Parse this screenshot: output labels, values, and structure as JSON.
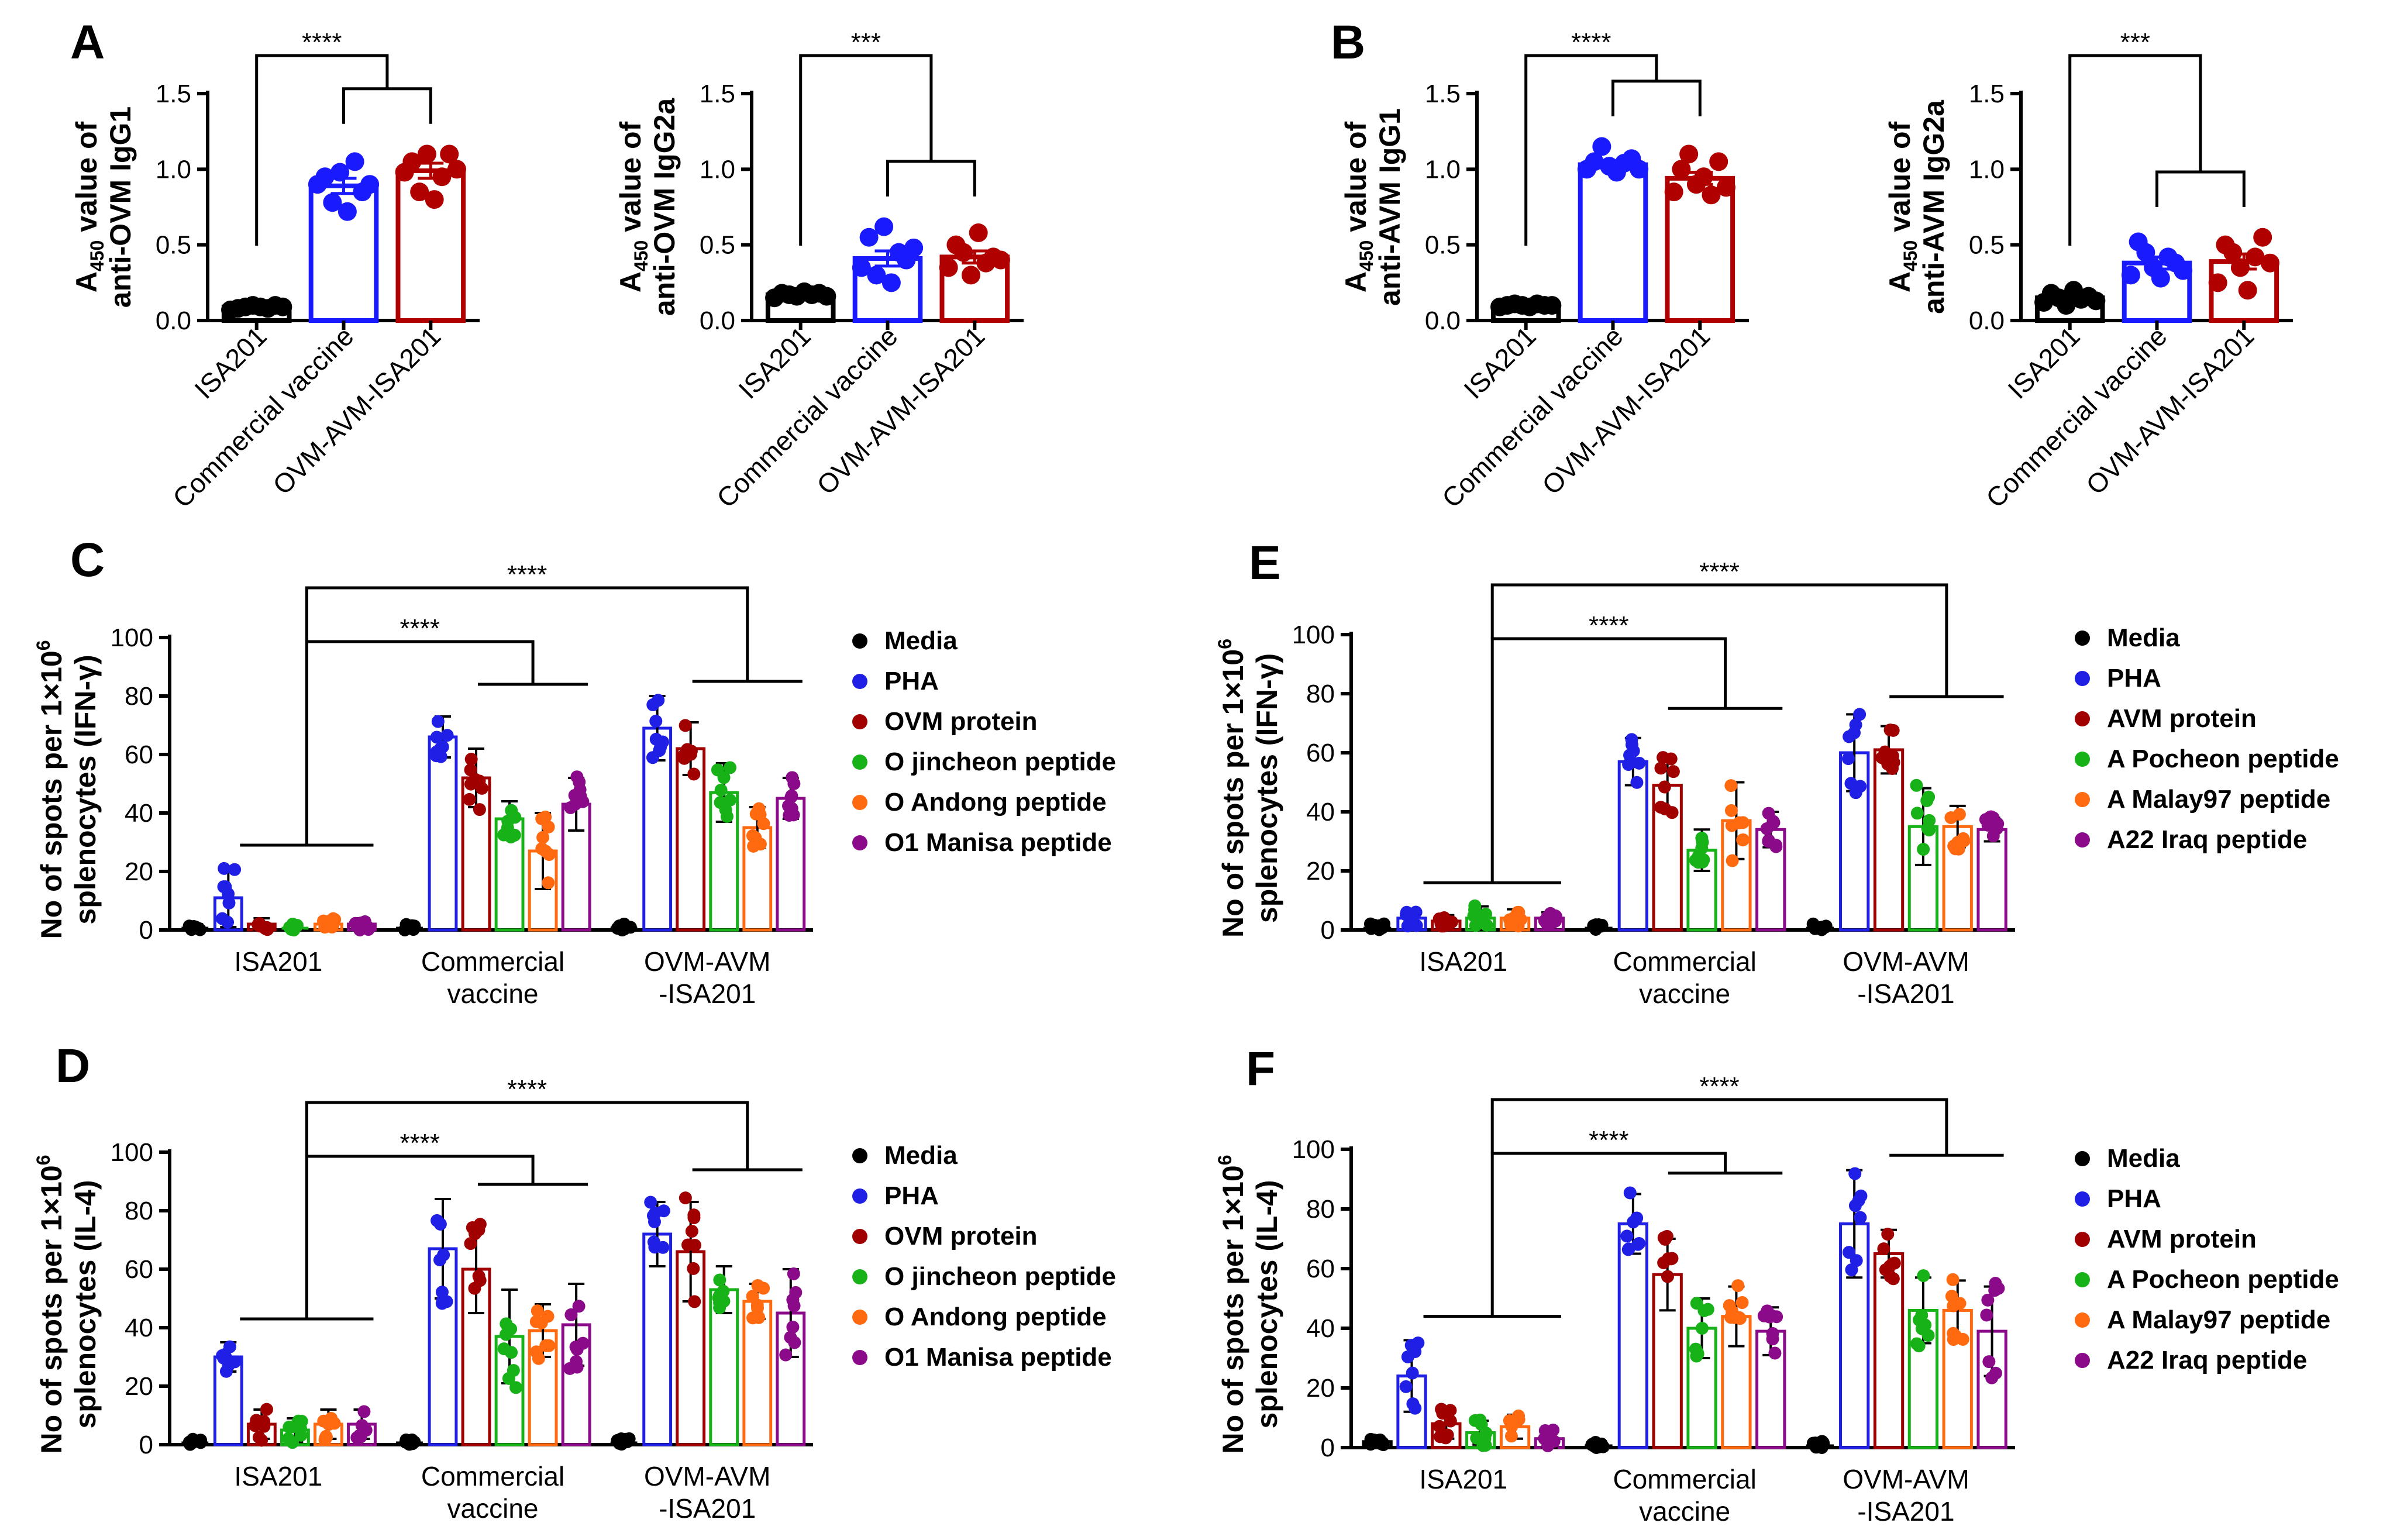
{
  "colors": {
    "ISA201": "#000000",
    "Commercial vaccine": "#1a1aff",
    "OVM-AVM-ISA201": "#b00000",
    "Media": "#000000",
    "PHA": "#1f1fe6",
    "Protein": "#a00000",
    "Peptide1": "#17b217",
    "Peptide2": "#ff6a10",
    "Peptide3": "#8a0a8a"
  },
  "chart_data": [
    {
      "panel": "A",
      "type": "bar",
      "ylabel_html": "A450 value of anti-OVM IgG1",
      "ylabel_line1": "A",
      "ylabel_sub": "450",
      "ylabel_rest": " value of",
      "ylabel_line2": "anti-OVM IgG1",
      "categories": [
        "ISA201",
        "Commercial vaccine",
        "OVM-AVM-ISA201"
      ],
      "values": [
        0.09,
        0.89,
        0.99
      ],
      "errors": [
        0.01,
        0.05,
        0.05
      ],
      "points": [
        [
          0.07,
          0.08,
          0.09,
          0.1,
          0.09,
          0.08,
          0.1,
          0.09
        ],
        [
          0.9,
          0.95,
          0.78,
          0.98,
          0.72,
          1.05,
          0.85,
          0.9
        ],
        [
          0.98,
          1.05,
          0.85,
          1.1,
          0.8,
          0.95,
          1.1,
          1.0
        ]
      ],
      "ylim": [
        0,
        1.5
      ],
      "yticks": [
        "0.0",
        "0.5",
        "1.0",
        "1.5"
      ],
      "sig": [
        "****"
      ]
    },
    {
      "panel": "A2",
      "type": "bar",
      "ylabel_line1": "A",
      "ylabel_sub": "450",
      "ylabel_rest": " value of",
      "ylabel_line2": "anti-OVM IgG2a",
      "categories": [
        "ISA201",
        "Commercial vaccine",
        "OVM-AVM-ISA201"
      ],
      "values": [
        0.17,
        0.41,
        0.42
      ],
      "errors": [
        0.01,
        0.05,
        0.04
      ],
      "points": [
        [
          0.15,
          0.18,
          0.17,
          0.16,
          0.19,
          0.17,
          0.18,
          0.16
        ],
        [
          0.35,
          0.55,
          0.3,
          0.62,
          0.25,
          0.45,
          0.4,
          0.48
        ],
        [
          0.35,
          0.5,
          0.45,
          0.3,
          0.58,
          0.38,
          0.42,
          0.4
        ]
      ],
      "ylim": [
        0,
        1.5
      ],
      "yticks": [
        "0.0",
        "0.5",
        "1.0",
        "1.5"
      ],
      "sig": [
        "***"
      ]
    },
    {
      "panel": "B",
      "type": "bar",
      "ylabel_line1": "A",
      "ylabel_sub": "450",
      "ylabel_rest": " value of",
      "ylabel_line2": "anti-AVM IgG1",
      "categories": [
        "ISA201",
        "Commercial vaccine",
        "OVM-AVM-ISA201"
      ],
      "values": [
        0.1,
        1.03,
        0.94
      ],
      "errors": [
        0.01,
        0.02,
        0.04
      ],
      "points": [
        [
          0.09,
          0.1,
          0.11,
          0.1,
          0.09,
          0.11,
          0.1,
          0.1
        ],
        [
          1.0,
          1.05,
          1.15,
          1.02,
          0.98,
          1.04,
          1.07,
          1.0
        ],
        [
          0.85,
          1.0,
          1.1,
          0.9,
          0.95,
          0.83,
          1.05,
          0.88
        ]
      ],
      "ylim": [
        0,
        1.5
      ],
      "yticks": [
        "0.0",
        "0.5",
        "1.0",
        "1.5"
      ],
      "sig": [
        "****"
      ]
    },
    {
      "panel": "B2",
      "type": "bar",
      "ylabel_line1": "A",
      "ylabel_sub": "450",
      "ylabel_rest": " value of",
      "ylabel_line2": "anti-AVM IgG2a",
      "categories": [
        "ISA201",
        "Commercial vaccine",
        "OVM-AVM-ISA201"
      ],
      "values": [
        0.15,
        0.38,
        0.39
      ],
      "errors": [
        0.02,
        0.04,
        0.05
      ],
      "points": [
        [
          0.12,
          0.18,
          0.15,
          0.1,
          0.2,
          0.14,
          0.16,
          0.13
        ],
        [
          0.3,
          0.52,
          0.45,
          0.35,
          0.28,
          0.42,
          0.38,
          0.33
        ],
        [
          0.25,
          0.5,
          0.45,
          0.35,
          0.2,
          0.42,
          0.55,
          0.38
        ]
      ],
      "ylim": [
        0,
        1.5
      ],
      "yticks": [
        "0.0",
        "0.5",
        "1.0",
        "1.5"
      ],
      "sig": [
        "***"
      ]
    },
    {
      "panel": "C",
      "type": "bar",
      "ylabel_line1": "No of spots per 1×10",
      "ylabel_sup": "6",
      "ylabel_line2": "splenocytes (IFN-γ)",
      "groups": [
        "ISA201",
        "Commercial",
        "OVM-AVM"
      ],
      "groups_line2": [
        "",
        "vaccine",
        "-ISA201"
      ],
      "series": [
        "Media",
        "PHA",
        "OVM protein",
        "O jincheon peptide",
        "O Andong peptide",
        "O1 Manisa peptide"
      ],
      "values": [
        [
          1,
          11,
          2,
          1,
          2,
          2
        ],
        [
          1,
          66,
          52,
          38,
          27,
          43
        ],
        [
          1,
          69,
          62,
          47,
          35,
          45
        ]
      ],
      "errors": [
        [
          1,
          10,
          2,
          1,
          2,
          2
        ],
        [
          1,
          7,
          10,
          6,
          13,
          9
        ],
        [
          1,
          11,
          9,
          10,
          7,
          7
        ]
      ],
      "ylim": [
        0,
        100
      ],
      "yticks": [
        "0",
        "20",
        "40",
        "60",
        "80",
        "100"
      ],
      "sig": [
        "****",
        "****"
      ]
    },
    {
      "panel": "D",
      "type": "bar",
      "ylabel_line1": "No of spots per 1×10",
      "ylabel_sup": "6",
      "ylabel_line2": "splenocytes (IL-4)",
      "groups": [
        "ISA201",
        "Commercial",
        "OVM-AVM"
      ],
      "groups_line2": [
        "",
        "vaccine",
        "-ISA201"
      ],
      "series": [
        "Media",
        "PHA",
        "OVM protein",
        "O jincheon peptide",
        "O Andong peptide",
        "O1 Manisa peptide"
      ],
      "values": [
        [
          1,
          30,
          7,
          5,
          7,
          7
        ],
        [
          1,
          67,
          60,
          37,
          39,
          41
        ],
        [
          1,
          72,
          66,
          53,
          49,
          45
        ]
      ],
      "errors": [
        [
          1,
          5,
          5,
          4,
          5,
          5
        ],
        [
          1,
          17,
          15,
          16,
          9,
          14
        ],
        [
          1,
          11,
          17,
          8,
          6,
          15
        ]
      ],
      "ylim": [
        0,
        100
      ],
      "yticks": [
        "0",
        "20",
        "40",
        "60",
        "80",
        "100"
      ],
      "sig": [
        "****",
        "****"
      ]
    },
    {
      "panel": "E",
      "type": "bar",
      "ylabel_line1": "No of spots per 1×10",
      "ylabel_sup": "6",
      "ylabel_line2": "splenocytes (IFN-γ)",
      "groups": [
        "ISA201",
        "Commercial",
        "OVM-AVM"
      ],
      "groups_line2": [
        "",
        "vaccine",
        "-ISA201"
      ],
      "series": [
        "Media",
        "PHA",
        "AVM protein",
        "A Pocheon peptide",
        "A Malay97 peptide",
        "A22 Iraq peptide"
      ],
      "values": [
        [
          1,
          4,
          3,
          4,
          4,
          4
        ],
        [
          1,
          57,
          49,
          27,
          37,
          34
        ],
        [
          1,
          60,
          61,
          35,
          35,
          34
        ]
      ],
      "errors": [
        [
          1,
          3,
          2,
          4,
          3,
          2
        ],
        [
          1,
          8,
          9,
          7,
          13,
          6
        ],
        [
          1,
          13,
          8,
          13,
          7,
          4
        ]
      ],
      "ylim": [
        0,
        100
      ],
      "yticks": [
        "0",
        "20",
        "40",
        "60",
        "80",
        "100"
      ],
      "sig": [
        "****",
        "****"
      ]
    },
    {
      "panel": "F",
      "type": "bar",
      "ylabel_line1": "No of spots per 1×10",
      "ylabel_sup": "6",
      "ylabel_line2": "splenocytes (IL-4)",
      "groups": [
        "ISA201",
        "Commercial",
        "OVM-AVM"
      ],
      "groups_line2": [
        "",
        "vaccine",
        "-ISA201"
      ],
      "series": [
        "Media",
        "PHA",
        "AVM protein",
        "A Pocheon peptide",
        "A Malay97 peptide",
        "A22 Iraq peptide"
      ],
      "values": [
        [
          2,
          24,
          8,
          5,
          7,
          3
        ],
        [
          1,
          75,
          58,
          40,
          44,
          39
        ],
        [
          1,
          75,
          65,
          46,
          46,
          39
        ]
      ],
      "errors": [
        [
          1,
          12,
          5,
          4,
          4,
          3
        ],
        [
          1,
          10,
          12,
          10,
          10,
          8
        ],
        [
          1,
          18,
          8,
          11,
          10,
          15
        ]
      ],
      "ylim": [
        0,
        100
      ],
      "yticks": [
        "0",
        "20",
        "40",
        "60",
        "80",
        "100"
      ],
      "sig": [
        "****",
        "****"
      ]
    }
  ]
}
